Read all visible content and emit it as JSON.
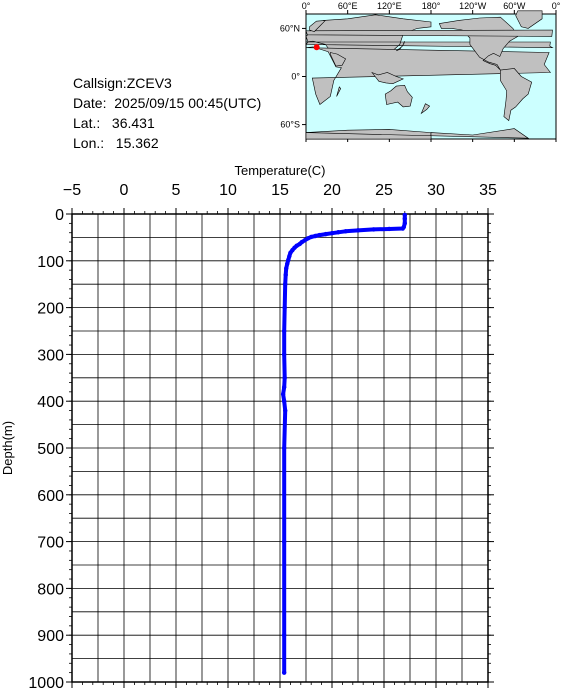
{
  "info": {
    "callsign": "Callsign:ZCEV3",
    "date": "Date:  2025/09/15 00:45(UTC)",
    "lat": "Lat.:   36.431",
    "lon": "Lon.:   15.362"
  },
  "map": {
    "lon_labels": [
      "0°",
      "60°E",
      "120°E",
      "180°",
      "120°W",
      "60°W",
      "0°"
    ],
    "lat_labels": [
      "60°N",
      "0°",
      "60°S"
    ],
    "ocean_color": "#ccffff",
    "land_color": "#c0c0c0",
    "marker_color": "#ff0000",
    "marker": {
      "lat": 36.431,
      "lon": 15.362
    }
  },
  "chart_data": {
    "type": "line",
    "title": "",
    "xlabel": "Temperature(C)",
    "ylabel": "Depth(m)",
    "xlim": [
      -5,
      35
    ],
    "ylim": [
      0,
      1000
    ],
    "y_inverted": true,
    "x_axis_position": "top",
    "x_ticks": [
      "-5",
      "0",
      "5",
      "10",
      "15",
      "20",
      "25",
      "30",
      "35"
    ],
    "y_ticks": [
      "0",
      "100",
      "200",
      "300",
      "400",
      "500",
      "600",
      "700",
      "800",
      "900",
      "1000"
    ],
    "grid": true,
    "line_color": "#0000ff",
    "series": [
      {
        "x": [
          27.0,
          27.0,
          27.0,
          26.9,
          26.8,
          25.5,
          24.0,
          22.5,
          21.3,
          20.6,
          20.0,
          19.4,
          18.8,
          18.4,
          18.0,
          17.7,
          17.4,
          17.1,
          16.9,
          16.6,
          16.4,
          16.2,
          16.0,
          15.9,
          15.8,
          15.7,
          15.6,
          15.55,
          15.5,
          15.45,
          15.4,
          15.4,
          15.45,
          15.4,
          15.3,
          15.4,
          15.5,
          15.4,
          15.4,
          15.4,
          15.4
        ],
        "y": [
          2,
          10,
          20,
          28,
          31,
          32,
          33,
          35,
          37,
          39,
          41,
          43,
          45,
          47,
          49,
          52,
          56,
          60,
          64,
          68,
          72,
          77,
          83,
          90,
          98,
          106,
          116,
          130,
          150,
          200,
          250,
          300,
          350,
          370,
          385,
          400,
          420,
          500,
          700,
          900,
          980
        ]
      }
    ]
  }
}
